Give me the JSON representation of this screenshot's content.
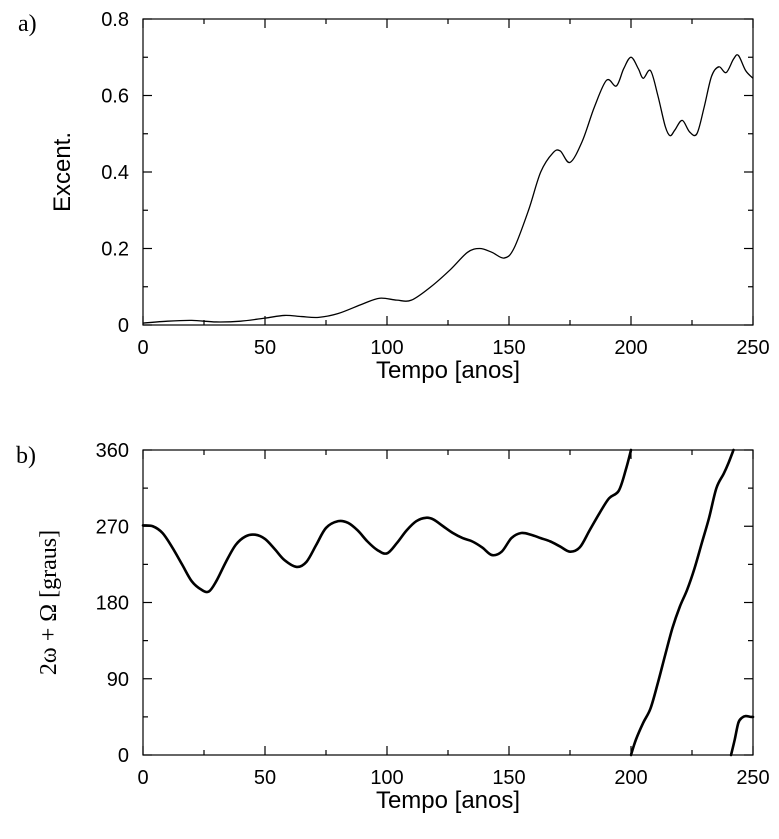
{
  "chart_data": [
    {
      "type": "line",
      "panel_label": "a)",
      "xlabel": "Tempo [anos]",
      "ylabel": "Excent.",
      "xlim": [
        0,
        250
      ],
      "ylim": [
        0,
        0.8
      ],
      "xticks": [
        "0",
        "50",
        "100",
        "150",
        "200",
        "250"
      ],
      "yticks": [
        "0",
        "0.2",
        "0.4",
        "0.6",
        "0.8"
      ],
      "grid": false,
      "series": [
        {
          "x": [
            0,
            10,
            20,
            30,
            40,
            50,
            58,
            65,
            72,
            80,
            90,
            97,
            104,
            110,
            118,
            126,
            133,
            138,
            143,
            148,
            152,
            158,
            163,
            168,
            171,
            175,
            180,
            185,
            190,
            194,
            197,
            200,
            203,
            205,
            208,
            211,
            214,
            216,
            218,
            221,
            224,
            227,
            230,
            233,
            236,
            239,
            242,
            244,
            247,
            250
          ],
          "y": [
            0.005,
            0.01,
            0.012,
            0.008,
            0.01,
            0.018,
            0.025,
            0.022,
            0.02,
            0.03,
            0.055,
            0.07,
            0.065,
            0.065,
            0.1,
            0.145,
            0.19,
            0.2,
            0.19,
            0.175,
            0.2,
            0.3,
            0.4,
            0.45,
            0.455,
            0.425,
            0.48,
            0.57,
            0.64,
            0.625,
            0.67,
            0.7,
            0.67,
            0.645,
            0.665,
            0.6,
            0.52,
            0.495,
            0.51,
            0.535,
            0.505,
            0.5,
            0.57,
            0.65,
            0.675,
            0.66,
            0.695,
            0.705,
            0.665,
            0.645
          ]
        }
      ]
    },
    {
      "type": "line",
      "panel_label": "b)",
      "xlabel": "Tempo [anos]",
      "ylabel": "2ω + Ω [graus]",
      "xlim": [
        0,
        250
      ],
      "ylim": [
        0,
        360
      ],
      "xticks": [
        "0",
        "50",
        "100",
        "150",
        "200",
        "250"
      ],
      "yticks": [
        "0",
        "90",
        "180",
        "270",
        "360"
      ],
      "grid": false,
      "series": [
        {
          "segments": [
            {
              "x": [
                0,
                4,
                8,
                12,
                16,
                20,
                24,
                27,
                30,
                34,
                38,
                42,
                46,
                50,
                54,
                58,
                63,
                67,
                71,
                75,
                80,
                84,
                88,
                92,
                96,
                100,
                104,
                108,
                112,
                116,
                119,
                123,
                127,
                131,
                135,
                139,
                143,
                147,
                151,
                155,
                159,
                163,
                167,
                171,
                175,
                179,
                183,
                187,
                191,
                195,
                198,
                200
              ],
              "y": [
                271,
                270,
                262,
                245,
                225,
                205,
                195,
                193,
                205,
                228,
                248,
                258,
                260,
                255,
                243,
                230,
                222,
                228,
                248,
                268,
                276,
                274,
                265,
                252,
                242,
                238,
                250,
                265,
                276,
                280,
                278,
                270,
                262,
                256,
                252,
                245,
                236,
                240,
                256,
                262,
                260,
                256,
                252,
                246,
                240,
                245,
                265,
                285,
                303,
                312,
                338,
                360
              ]
            },
            {
              "x": [
                200,
                202,
                205,
                208,
                211,
                214,
                217,
                220,
                223,
                226,
                229,
                232,
                235,
                238,
                240,
                242
              ],
              "y": [
                0,
                18,
                38,
                55,
                85,
                118,
                150,
                175,
                195,
                220,
                250,
                280,
                315,
                332,
                345,
                360
              ]
            },
            {
              "x": [
                241,
                242.5,
                244,
                245.5,
                247,
                249,
                250
              ],
              "y": [
                0,
                18,
                38,
                44,
                46,
                45,
                45
              ]
            }
          ]
        }
      ]
    }
  ]
}
